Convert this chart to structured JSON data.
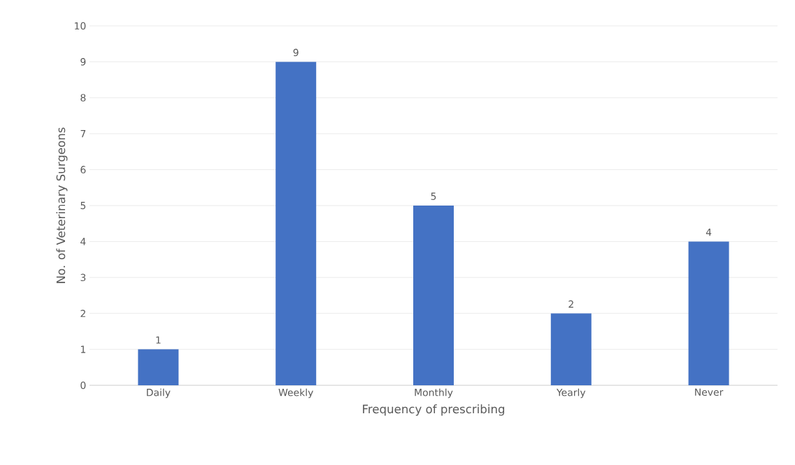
{
  "chart_data": {
    "type": "bar",
    "xlabel": "Frequency of prescribing",
    "ylabel": "No. of Veterinary Surgeons",
    "categories": [
      "Daily",
      "Weekly",
      "Monthly",
      "Yearly",
      "Never"
    ],
    "values": [
      1,
      9,
      5,
      2,
      4
    ],
    "color": "#4472c4",
    "ylim": [
      0,
      10
    ],
    "yticks": [
      0,
      1,
      2,
      3,
      4,
      5,
      6,
      7,
      8,
      9,
      10
    ],
    "grid": "y",
    "data_labels": true
  }
}
